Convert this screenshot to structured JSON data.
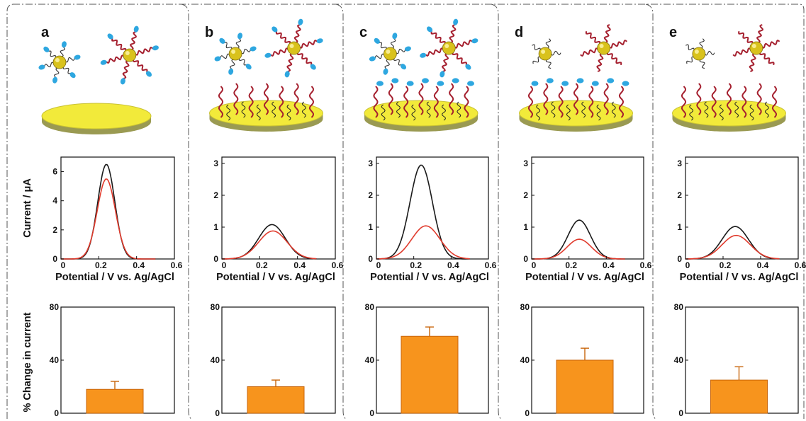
{
  "colors": {
    "gold": "#d9c21c",
    "electrode_top": "#f2ea3a",
    "electrode_side": "#9a9a52",
    "dna_red": "#a5202f",
    "probe_blue": "#2ea7e0",
    "bar_fill": "#f7941d",
    "bar_edge": "#c8650a",
    "curve_before": "#1a1a1a",
    "curve_after": "#e03a2c",
    "border": "#555555"
  },
  "axis_titles": {
    "current_y": "Current / μA",
    "potential_x": "Potential / V vs. Ag/AgCl",
    "change_y": "% Change in current"
  },
  "chart_data": [
    {
      "panel": "a",
      "voltammogram": {
        "type": "line",
        "xlim": [
          0,
          0.6
        ],
        "ylim": [
          0,
          7
        ],
        "xticks": [
          "0",
          "0.2",
          "0.4",
          "0.6"
        ],
        "yticks": [
          "0",
          "2",
          "4",
          "6"
        ],
        "series": [
          {
            "color": "#1a1a1a",
            "peak_x": 0.24,
            "peak_y": 6.5,
            "width": 0.045
          },
          {
            "color": "#e03a2c",
            "peak_x": 0.24,
            "peak_y": 5.5,
            "width": 0.048
          }
        ]
      },
      "bar": {
        "type": "bar",
        "ylim": [
          0,
          80
        ],
        "yticks": [
          "0",
          "40",
          "80"
        ],
        "value": 18,
        "error": 6
      }
    },
    {
      "panel": "b",
      "voltammogram": {
        "type": "line",
        "xlim": [
          0,
          0.6
        ],
        "ylim": [
          0,
          3.2
        ],
        "xticks": [
          "0",
          "0.2",
          "0.4",
          "0.6"
        ],
        "yticks": [
          "0",
          "1",
          "2",
          "3"
        ],
        "series": [
          {
            "color": "#1a1a1a",
            "peak_x": 0.265,
            "peak_y": 1.08,
            "width": 0.07
          },
          {
            "color": "#e03a2c",
            "peak_x": 0.27,
            "peak_y": 0.88,
            "width": 0.075
          }
        ]
      },
      "bar": {
        "type": "bar",
        "ylim": [
          0,
          80
        ],
        "yticks": [
          "0",
          "40",
          "80"
        ],
        "value": 20,
        "error": 5
      }
    },
    {
      "panel": "c",
      "voltammogram": {
        "type": "line",
        "xlim": [
          0,
          0.6
        ],
        "ylim": [
          0,
          3.2
        ],
        "xticks": [
          "0",
          "0.2",
          "0.4",
          "0.6"
        ],
        "yticks": [
          "0",
          "1",
          "2",
          "3"
        ],
        "series": [
          {
            "color": "#1a1a1a",
            "peak_x": 0.24,
            "peak_y": 2.95,
            "width": 0.06
          },
          {
            "color": "#e03a2c",
            "peak_x": 0.265,
            "peak_y": 1.04,
            "width": 0.075
          }
        ]
      },
      "bar": {
        "type": "bar",
        "ylim": [
          0,
          80
        ],
        "yticks": [
          "0",
          "40",
          "80"
        ],
        "value": 58,
        "error": 7
      }
    },
    {
      "panel": "d",
      "voltammogram": {
        "type": "line",
        "xlim": [
          0,
          0.6
        ],
        "ylim": [
          0,
          3.2
        ],
        "xticks": [
          "0",
          "0.2",
          "0.4",
          "0.6"
        ],
        "yticks": [
          "0",
          "1",
          "2",
          "3"
        ],
        "series": [
          {
            "color": "#1a1a1a",
            "peak_x": 0.255,
            "peak_y": 1.22,
            "width": 0.06
          },
          {
            "color": "#e03a2c",
            "peak_x": 0.255,
            "peak_y": 0.62,
            "width": 0.065
          }
        ]
      },
      "bar": {
        "type": "bar",
        "ylim": [
          0,
          80
        ],
        "yticks": [
          "0",
          "40",
          "80"
        ],
        "value": 40,
        "error": 9
      }
    },
    {
      "panel": "e",
      "voltammogram": {
        "type": "line",
        "xlim": [
          0,
          0.6
        ],
        "ylim": [
          0,
          3.2
        ],
        "xticks": [
          "0",
          "0.2",
          "0.4",
          "0.6"
        ],
        "yticks": [
          "0",
          "1",
          "2",
          "3"
        ],
        "series": [
          {
            "color": "#1a1a1a",
            "peak_x": 0.265,
            "peak_y": 1.02,
            "width": 0.07
          },
          {
            "color": "#e03a2c",
            "peak_x": 0.27,
            "peak_y": 0.74,
            "width": 0.075
          }
        ]
      },
      "bar": {
        "type": "bar",
        "ylim": [
          0,
          80
        ],
        "yticks": [
          "0",
          "40",
          "80"
        ],
        "value": 25,
        "error": 10
      }
    }
  ],
  "panels": [
    {
      "letter": "a",
      "particles": [
        {
          "spikes": 6,
          "label": "hairpin",
          "probe": true
        },
        {
          "spikes": 6,
          "label": "strand",
          "probe": true
        }
      ],
      "surface_strands": false,
      "surface_probes": false
    },
    {
      "letter": "b",
      "particles": [
        {
          "spikes": 6,
          "label": "hairpin",
          "probe": true
        },
        {
          "spikes": 6,
          "label": "strand",
          "probe": true
        }
      ],
      "surface_strands": true,
      "surface_probes": false
    },
    {
      "letter": "c",
      "particles": [
        {
          "spikes": 6,
          "label": "hairpin",
          "probe": true
        },
        {
          "spikes": 6,
          "label": "strand",
          "probe": true
        }
      ],
      "surface_strands": true,
      "surface_probes": true
    },
    {
      "letter": "d",
      "particles": [
        {
          "spikes": 5,
          "label": "hairpin",
          "probe": false
        },
        {
          "spikes": 6,
          "label": "strand",
          "probe": false
        }
      ],
      "surface_strands": true,
      "surface_probes": true
    },
    {
      "letter": "e",
      "particles": [
        {
          "spikes": 5,
          "label": "hairpin",
          "probe": false
        },
        {
          "spikes": 6,
          "label": "strand",
          "probe": false
        }
      ],
      "surface_strands": true,
      "surface_probes": false
    }
  ]
}
